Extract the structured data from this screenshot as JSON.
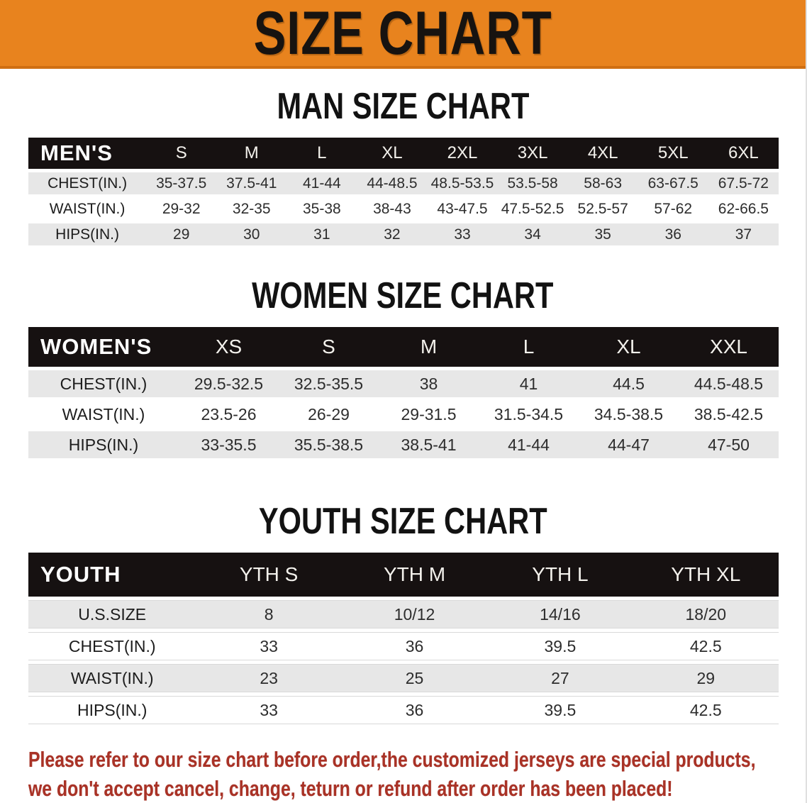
{
  "banner": {
    "title": "SIZE CHART"
  },
  "colors": {
    "banner_orange": "#E8831E",
    "header_band_black": "#161111",
    "row_gray": "#E7E7E7",
    "footer_red": "#A93226"
  },
  "sections": [
    {
      "title": "MAN SIZE CHART",
      "corner": "MEN'S",
      "columns": [
        "S",
        "M",
        "L",
        "XL",
        "2XL",
        "3XL",
        "4XL",
        "5XL",
        "6XL"
      ],
      "rows": [
        {
          "label": "CHEST(IN.)",
          "values": [
            "35-37.5",
            "37.5-41",
            "41-44",
            "44-48.5",
            "48.5-53.5",
            "53.5-58",
            "58-63",
            "63-67.5",
            "67.5-72"
          ]
        },
        {
          "label": "WAIST(IN.)",
          "values": [
            "29-32",
            "32-35",
            "35-38",
            "38-43",
            "43-47.5",
            "47.5-52.5",
            "52.5-57",
            "57-62",
            "62-66.5"
          ]
        },
        {
          "label": "HIPS(IN.)",
          "values": [
            "29",
            "30",
            "31",
            "32",
            "33",
            "34",
            "35",
            "36",
            "37"
          ]
        }
      ]
    },
    {
      "title": "WOMEN SIZE CHART",
      "corner": "WOMEN'S",
      "columns": [
        "XS",
        "S",
        "M",
        "L",
        "XL",
        "XXL"
      ],
      "rows": [
        {
          "label": "CHEST(IN.)",
          "values": [
            "29.5-32.5",
            "32.5-35.5",
            "38",
            "41",
            "44.5",
            "44.5-48.5"
          ]
        },
        {
          "label": "WAIST(IN.)",
          "values": [
            "23.5-26",
            "26-29",
            "29-31.5",
            "31.5-34.5",
            "34.5-38.5",
            "38.5-42.5"
          ]
        },
        {
          "label": "HIPS(IN.)",
          "values": [
            "33-35.5",
            "35.5-38.5",
            "38.5-41",
            "41-44",
            "44-47",
            "47-50"
          ]
        }
      ]
    },
    {
      "title": "YOUTH SIZE CHART",
      "corner": "YOUTH",
      "columns": [
        "YTH S",
        "YTH M",
        "YTH L",
        "YTH XL"
      ],
      "rows": [
        {
          "label": "U.S.SIZE",
          "values": [
            "8",
            "10/12",
            "14/16",
            "18/20"
          ]
        },
        {
          "label": "CHEST(IN.)",
          "values": [
            "33",
            "36",
            "39.5",
            "42.5"
          ]
        },
        {
          "label": "WAIST(IN.)",
          "values": [
            "23",
            "25",
            "27",
            "29"
          ]
        },
        {
          "label": "HIPS(IN.)",
          "values": [
            "33",
            "36",
            "39.5",
            "42.5"
          ]
        }
      ]
    }
  ],
  "footer": {
    "line1": "Please refer to our size chart before order,the customized jerseys are special products,",
    "line2": "we don't accept cancel, change, teturn or refund after order has been placed!"
  }
}
